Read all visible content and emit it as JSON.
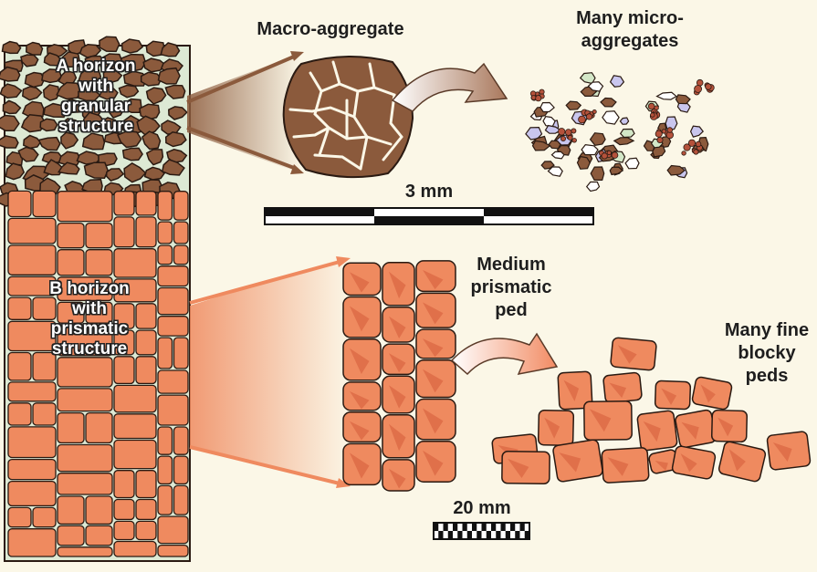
{
  "labels": {
    "a_horizon": [
      "A horizon",
      "with",
      "granular",
      "structure"
    ],
    "b_horizon": [
      "B horizon",
      "with",
      "prismatic",
      "structure"
    ],
    "macro_aggregate": "Macro-aggregate",
    "micro_aggregates": [
      "Many micro-",
      "aggregates"
    ],
    "medium_ped": [
      "Medium",
      "prismatic",
      "ped"
    ],
    "blocky_peds": [
      "Many fine",
      "blocky",
      "peds"
    ],
    "scale_top": "3 mm",
    "scale_bottom": "20 mm"
  },
  "colors": {
    "background": "#fbf7e7",
    "granular": "#8b5a3c",
    "prismatic": "#ef8a5f",
    "prismatic_dark": "#e0704a",
    "micro_blue": "#c9c6ee",
    "micro_green": "#d3e7c7",
    "outline": "#2a1a12"
  }
}
